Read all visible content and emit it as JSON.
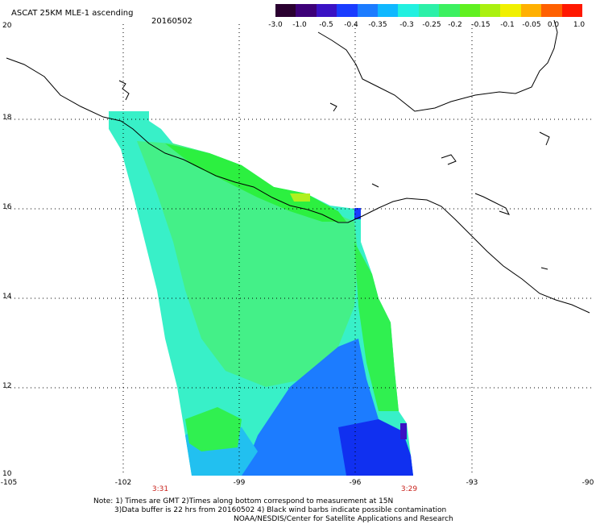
{
  "header": {
    "title": "ASCAT 25KM MLE-1 ascending",
    "date": "20160502"
  },
  "colorbar": {
    "colors": [
      "#2a0030",
      "#3d0078",
      "#3a12c4",
      "#1a3cff",
      "#1c7cff",
      "#10b8ff",
      "#22f0e0",
      "#2cf0a8",
      "#3cf060",
      "#60f020",
      "#aaf010",
      "#f0f000",
      "#ffb000",
      "#ff6000",
      "#ff1800"
    ],
    "labels": [
      "-3.0",
      "-1.0",
      "-0.5",
      "-0.4",
      "-0.35",
      "-0.3",
      "-0.25",
      "-0.2",
      "-0.15",
      "-0.1",
      "-0.05",
      "0.0",
      "1.0"
    ]
  },
  "axes": {
    "lat_labels": [
      "20",
      "18",
      "16",
      "14",
      "12",
      "10"
    ],
    "lon_labels": [
      "-105",
      "-102",
      "-99",
      "-96",
      "-93",
      "-90"
    ]
  },
  "times": {
    "left": "3:31",
    "right": "3:29"
  },
  "notes": {
    "line1": "Note: 1) Times are GMT 2)Times along bottom correspond to measurement at 15N",
    "line2": "3)Data buffer is 22 hrs from 20160502 4) Black wind barbs indicate possible contamination",
    "line3": "NOAA/NESDIS/Center for Satellite Applications and Research"
  },
  "map": {
    "extent": {
      "lon_min": -105,
      "lon_max": -90,
      "lat_min": 10,
      "lat_max": 20
    },
    "swath_color_default": "#33f0c8"
  }
}
